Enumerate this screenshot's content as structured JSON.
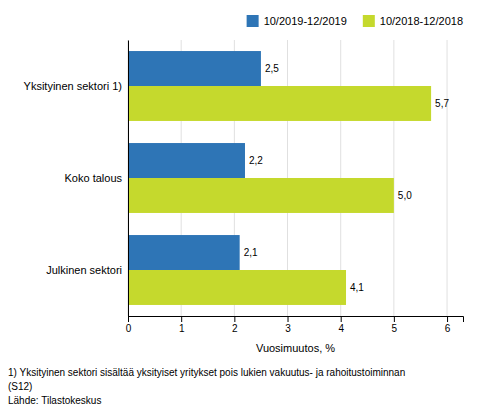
{
  "chart_data": {
    "type": "bar",
    "orientation": "horizontal",
    "categories": [
      "Julkinen sektori",
      "Koko talous",
      "Yksityinen sektori 1)"
    ],
    "series": [
      {
        "name": "10/2019-12/2019",
        "color": "#2E75B6",
        "values": [
          2.1,
          2.2,
          2.5
        ],
        "value_labels": [
          "2,1",
          "2,2",
          "2,5"
        ]
      },
      {
        "name": "10/2018-12/2018",
        "color": "#C5D92D",
        "values": [
          4.1,
          5.0,
          5.7
        ],
        "value_labels": [
          "4,1",
          "5,0",
          "5,7"
        ]
      }
    ],
    "xlabel": "Vuosimuutos, %",
    "xlim": [
      0,
      6.3
    ],
    "xticks": [
      0,
      1,
      2,
      3,
      4,
      5,
      6
    ],
    "grid": true,
    "legend": "upper right",
    "data_labels": true,
    "annotations": [
      "1) Yksityinen sektori sisältää yksityiset yritykset pois lukien vakuutus- ja rahoitustoiminnan",
      "(S12)",
      "Lähde: Tilastokeskus"
    ]
  }
}
